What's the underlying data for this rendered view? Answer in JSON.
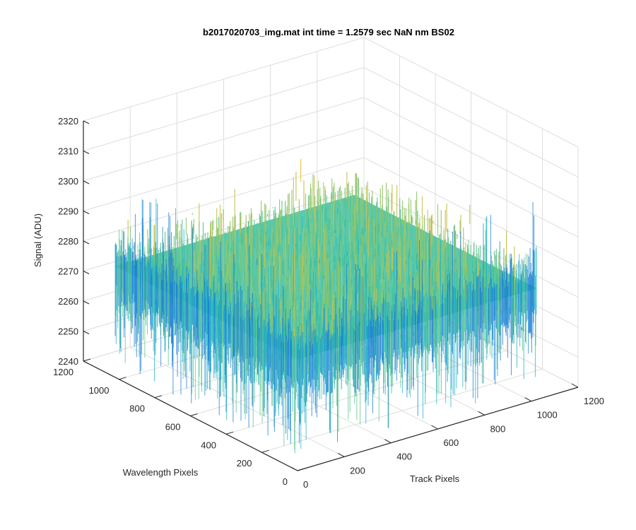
{
  "chart_data": {
    "type": "surface3d",
    "title": "b2017020703_img.mat int time = 1.2579 sec  NaN nm BS02",
    "xlabel": "Track Pixels",
    "ylabel": "Wavelength Pixels",
    "zlabel": "Signal (ADU)",
    "xlim": [
      0,
      1200
    ],
    "ylim": [
      0,
      1200
    ],
    "zlim": [
      2240,
      2320
    ],
    "x_ticks": [
      0,
      200,
      400,
      600,
      800,
      1000,
      1200
    ],
    "y_ticks": [
      0,
      200,
      400,
      600,
      800,
      1000,
      1200
    ],
    "z_ticks": [
      2240,
      2250,
      2260,
      2270,
      2280,
      2290,
      2300,
      2310,
      2320
    ],
    "data_extent": {
      "x": [
        0,
        1024
      ],
      "y": [
        0,
        1024
      ]
    },
    "surface_mean": 2277,
    "surface_noise_range": [
      2244,
      2310
    ],
    "grid": true,
    "view": "3d-isometric",
    "colormap": [
      "#1a7fd6",
      "#1f9edb",
      "#22b5c4",
      "#33bfae",
      "#5cc48f",
      "#93c66d",
      "#c8c250",
      "#e6c33a"
    ]
  }
}
